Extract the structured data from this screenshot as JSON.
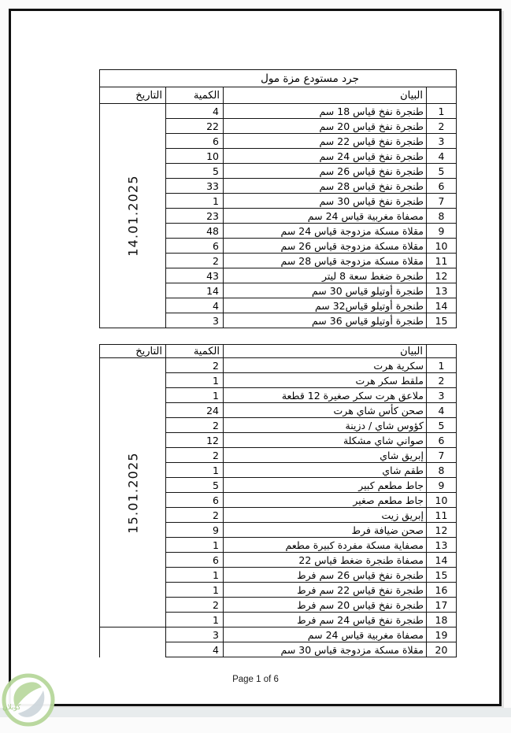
{
  "document": {
    "title": "جرد مستودع مزة مول",
    "footer_page_label": "Page 1 of 6",
    "column_headers": {
      "date": "التاريخ",
      "quantity": "الكمية",
      "description": "البيان"
    },
    "watermark": {
      "brand_text": "كوبلان"
    },
    "colors": {
      "table_border": "#141414",
      "watermark_green": "#b7d79b",
      "watermark_gray": "#ccd5da",
      "bottom_strip": "#e8eced"
    },
    "tables": [
      {
        "date": "14.01.2025",
        "rows": [
          {
            "no": "1",
            "description": "طنجرة نفخ قياس 18 سم",
            "quantity": "4"
          },
          {
            "no": "2",
            "description": "طنجرة نفخ قياس 20 سم",
            "quantity": "22"
          },
          {
            "no": "3",
            "description": "طنجرة نفخ قياس 22 سم",
            "quantity": "6"
          },
          {
            "no": "4",
            "description": "طنجرة نفخ قياس 24 سم",
            "quantity": "10"
          },
          {
            "no": "5",
            "description": "طنجرة نفخ قياس 26 سم",
            "quantity": "5"
          },
          {
            "no": "6",
            "description": "طنجرة نفخ قياس 28 سم",
            "quantity": "33"
          },
          {
            "no": "7",
            "description": "طنجرة نفخ قياس 30 سم",
            "quantity": "1"
          },
          {
            "no": "8",
            "description": "مصفاة مغربية قياس 24 سم",
            "quantity": "23"
          },
          {
            "no": "9",
            "description": "مقلاة مسكة مزدوجة قياس 24 سم",
            "quantity": "48"
          },
          {
            "no": "10",
            "description": "مقلاة مسكة مزدوجة قياس 26 سم",
            "quantity": "6"
          },
          {
            "no": "11",
            "description": "مقلاة مسكة مزدوجة قياس 28 سم",
            "quantity": "2"
          },
          {
            "no": "12",
            "description": "طنجرة ضغط سعة 8  ليتر",
            "quantity": "43"
          },
          {
            "no": "13",
            "description": "طنجرة أوتيلو قياس 30 سم",
            "quantity": "14"
          },
          {
            "no": "14",
            "description": "طنجرة أوتيلو قياس32 سم",
            "quantity": "4"
          },
          {
            "no": "15",
            "description": "طنجرة أوتيلو قياس 36 سم",
            "quantity": "3"
          }
        ]
      },
      {
        "date": "15.01.2025",
        "date_span": 18,
        "rows": [
          {
            "no": "1",
            "description": "سكرية هرت",
            "quantity": "2"
          },
          {
            "no": "2",
            "description": "ملقط سكر هرت",
            "quantity": "1"
          },
          {
            "no": "3",
            "description": "ملاعق هرت سكر صغيرة 12 قطعة",
            "quantity": "1"
          },
          {
            "no": "4",
            "description": "صحن كأس شاي هرت",
            "quantity": "24"
          },
          {
            "no": "5",
            "description": "كؤوس شاي / دزينة",
            "quantity": "2"
          },
          {
            "no": "6",
            "description": "صواني شاي مشكلة",
            "quantity": "12"
          },
          {
            "no": "7",
            "description": "إبريق شاي",
            "quantity": "2"
          },
          {
            "no": "8",
            "description": "طقم شاي",
            "quantity": "1"
          },
          {
            "no": "9",
            "description": "جاط مطعم كبير",
            "quantity": "5"
          },
          {
            "no": "10",
            "description": "جاط مطعم صغير",
            "quantity": "6"
          },
          {
            "no": "11",
            "description": "إبريق زيت",
            "quantity": "2"
          },
          {
            "no": "12",
            "description": "صحن ضيافة فرط",
            "quantity": "9"
          },
          {
            "no": "13",
            "description": "مصفاية مسكة مفردة كبيرة مطعم",
            "quantity": "1"
          },
          {
            "no": "14",
            "description": "مصفاة طنجرة ضغط قياس 22",
            "quantity": "6"
          },
          {
            "no": "15",
            "description": "طنجرة نفخ قياس 26 سم فرط",
            "quantity": "1"
          },
          {
            "no": "16",
            "description": "طنجرة نفخ قياس 22 سم فرط",
            "quantity": "1"
          },
          {
            "no": "17",
            "description": "طنجرة نفخ قياس 20 سم فرط",
            "quantity": "2"
          },
          {
            "no": "18",
            "description": "طنجرة نفخ قياس 24 سم فرط",
            "quantity": "1"
          },
          {
            "no": "19",
            "description": "مصفاة مغربية قياس 24 سم",
            "quantity": "3"
          },
          {
            "no": "20",
            "description": "مقلاة مسكة مزدوجة قياس 30 سم",
            "quantity": "4"
          }
        ]
      }
    ]
  }
}
